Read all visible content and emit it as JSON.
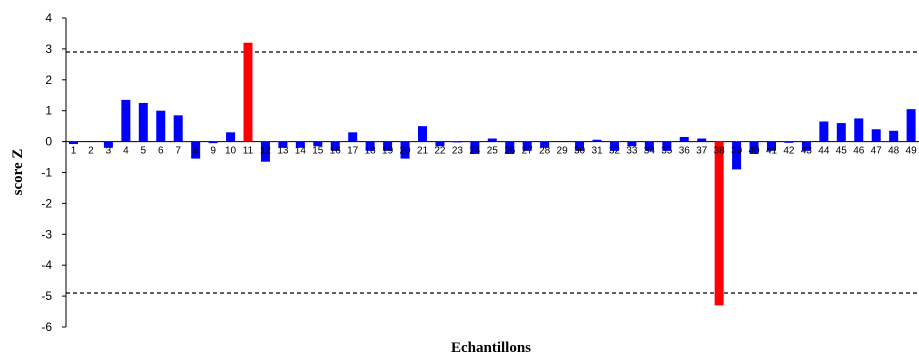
{
  "chart_data": {
    "type": "bar",
    "xlabel": "Echantillons",
    "ylabel": "score Z",
    "ylim": [
      -6,
      4
    ],
    "yticks": [
      "4",
      "3",
      "2",
      "1",
      "0",
      "-1",
      "-2",
      "-3",
      "-4",
      "-5",
      "-6"
    ],
    "grid": false,
    "reference_lines": [
      2.9,
      -4.9
    ],
    "categories": [
      "1",
      "2",
      "3",
      "4",
      "5",
      "6",
      "7",
      "8",
      "9",
      "10",
      "11",
      "12",
      "13",
      "14",
      "15",
      "16",
      "17",
      "18",
      "19",
      "20",
      "21",
      "22",
      "23",
      "24",
      "25",
      "26",
      "27",
      "28",
      "29",
      "30",
      "31",
      "32",
      "33",
      "34",
      "35",
      "36",
      "37",
      "38",
      "39",
      "40",
      "41",
      "42",
      "43",
      "44",
      "45",
      "46",
      "47",
      "48",
      "49"
    ],
    "values": [
      -0.08,
      0.02,
      -0.2,
      1.35,
      1.25,
      1.0,
      0.85,
      -0.55,
      -0.05,
      0.3,
      3.2,
      -0.65,
      -0.2,
      -0.2,
      -0.15,
      -0.3,
      0.3,
      -0.3,
      -0.3,
      -0.55,
      0.5,
      -0.15,
      0.0,
      -0.4,
      0.1,
      -0.4,
      -0.3,
      -0.2,
      0.02,
      -0.3,
      0.06,
      -0.3,
      -0.15,
      -0.3,
      -0.3,
      0.15,
      0.1,
      -5.3,
      -0.9,
      -0.4,
      -0.3,
      -0.04,
      -0.3,
      0.65,
      0.6,
      0.75,
      0.4,
      0.35,
      1.05
    ],
    "colors": {
      "normal": "#0000ff",
      "outlier": "#ff0000",
      "axis": "#000000",
      "threshold": "#000000"
    },
    "outlier_categories": [
      "11",
      "38"
    ]
  }
}
